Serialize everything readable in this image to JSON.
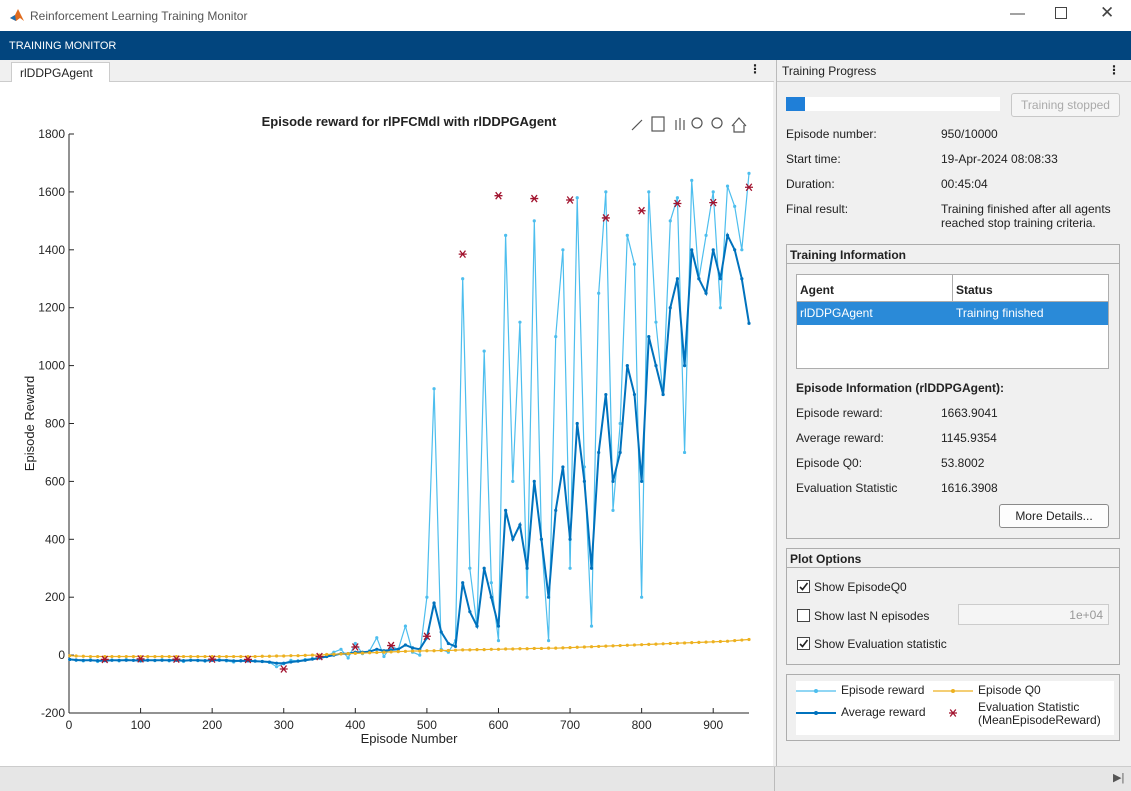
{
  "window": {
    "title": "Reinforcement Learning Training Monitor"
  },
  "toolbar": {
    "title": "TRAINING MONITOR"
  },
  "document_tab": {
    "label": "rlDDPGAgent"
  },
  "chart_data": {
    "type": "line",
    "title": "Episode reward for rlPFCMdl with rlDDPGAgent",
    "xlabel": "Episode Number",
    "ylabel": "Episode Reward",
    "xlim": [
      0,
      950
    ],
    "xticks": [
      0,
      100,
      200,
      300,
      400,
      500,
      600,
      700,
      800,
      900
    ],
    "ylim": [
      -200,
      1800
    ],
    "yticks": [
      -200,
      0,
      200,
      400,
      600,
      800,
      1000,
      1200,
      1400,
      1600,
      1800
    ],
    "x": [
      1,
      10,
      20,
      30,
      40,
      50,
      60,
      70,
      80,
      90,
      100,
      110,
      120,
      130,
      140,
      150,
      160,
      170,
      180,
      190,
      200,
      210,
      220,
      230,
      240,
      250,
      260,
      270,
      280,
      290,
      300,
      310,
      320,
      330,
      340,
      350,
      360,
      370,
      380,
      390,
      400,
      410,
      420,
      430,
      440,
      450,
      460,
      470,
      480,
      490,
      500,
      510,
      520,
      530,
      540,
      550,
      560,
      570,
      580,
      590,
      600,
      610,
      620,
      630,
      640,
      650,
      660,
      670,
      680,
      690,
      700,
      710,
      720,
      730,
      740,
      750,
      760,
      770,
      780,
      790,
      800,
      810,
      820,
      830,
      840,
      850,
      860,
      870,
      880,
      890,
      900,
      910,
      920,
      930,
      940,
      950
    ],
    "series": [
      {
        "name": "Episode reward",
        "color": "#4dbeee",
        "style": "line",
        "values": [
          -15,
          -18,
          -20,
          -16,
          -22,
          -19,
          -17,
          -20,
          -15,
          -18,
          -21,
          -17,
          -19,
          -16,
          -20,
          -18,
          -22,
          -17,
          -19,
          -21,
          -18,
          -16,
          -20,
          -24,
          -19,
          -17,
          -20,
          -22,
          -25,
          -40,
          -30,
          -18,
          -20,
          -15,
          -12,
          -10,
          -5,
          10,
          20,
          -10,
          40,
          5,
          15,
          60,
          -5,
          30,
          20,
          100,
          10,
          0,
          200,
          920,
          20,
          10,
          50,
          1300,
          300,
          100,
          1050,
          250,
          50,
          1450,
          600,
          1150,
          200,
          1500,
          400,
          50,
          1100,
          1400,
          300,
          1580,
          650,
          100,
          1250,
          1600,
          500,
          800,
          1450,
          1350,
          200,
          1600,
          1150,
          900,
          1500,
          1580,
          700,
          1640,
          1300,
          1450,
          1600,
          1200,
          1620,
          1550,
          1400,
          1664
        ]
      },
      {
        "name": "Average reward",
        "color": "#0072bd",
        "style": "line",
        "values": [
          -15,
          -17,
          -18,
          -18,
          -19,
          -19,
          -18,
          -18,
          -18,
          -18,
          -19,
          -18,
          -18,
          -18,
          -18,
          -18,
          -19,
          -18,
          -18,
          -19,
          -18,
          -18,
          -18,
          -20,
          -20,
          -20,
          -21,
          -22,
          -24,
          -28,
          -28,
          -24,
          -21,
          -18,
          -14,
          -10,
          -5,
          0,
          5,
          5,
          10,
          10,
          12,
          20,
          15,
          18,
          20,
          35,
          25,
          20,
          60,
          180,
          80,
          40,
          30,
          250,
          150,
          100,
          300,
          200,
          100,
          500,
          400,
          450,
          300,
          600,
          400,
          200,
          500,
          650,
          400,
          800,
          600,
          300,
          700,
          900,
          600,
          700,
          1000,
          900,
          600,
          1100,
          1000,
          900,
          1200,
          1300,
          1000,
          1400,
          1300,
          1250,
          1400,
          1300,
          1450,
          1400,
          1300,
          1146
        ]
      },
      {
        "name": "Episode Q0",
        "color": "#edb120",
        "style": "line",
        "values": [
          -2,
          -3,
          -4,
          -5,
          -5,
          -5,
          -5,
          -5,
          -5,
          -5,
          -5,
          -5,
          -5,
          -5,
          -5,
          -5,
          -5,
          -5,
          -5,
          -5,
          -5,
          -5,
          -5,
          -5,
          -5,
          -5,
          -5,
          -4,
          -4,
          -3,
          -3,
          -2,
          -2,
          -1,
          0,
          0,
          2,
          3,
          4,
          5,
          6,
          7,
          8,
          9,
          10,
          11,
          12,
          13,
          14,
          14,
          15,
          15,
          16,
          16,
          17,
          18,
          18,
          19,
          19,
          20,
          20,
          21,
          21,
          22,
          22,
          23,
          23,
          24,
          24,
          25,
          26,
          27,
          28,
          29,
          30,
          31,
          32,
          33,
          34,
          35,
          36,
          37,
          38,
          39,
          40,
          41,
          42,
          43,
          44,
          45,
          46,
          47,
          48,
          50,
          52,
          54
        ]
      },
      {
        "name": "Evaluation Statistic (MeanEpisodeReward)",
        "color": "#a2142f",
        "style": "marker",
        "x": [
          50,
          100,
          150,
          200,
          250,
          300,
          350,
          400,
          450,
          500,
          550,
          600,
          650,
          700,
          750,
          800,
          850,
          900,
          950
        ],
        "values": [
          -15,
          -13,
          -14,
          -14,
          -15,
          -48,
          -5,
          28,
          33,
          65,
          1385,
          1587,
          1577,
          1572,
          1510,
          1535,
          1560,
          1563,
          1616
        ]
      }
    ]
  },
  "progress": {
    "title": "Training Progress",
    "button": "Training stopped",
    "items": [
      {
        "label": "Episode number:",
        "value": "950/10000"
      },
      {
        "label": "Start time:",
        "value": "19-Apr-2024 08:08:33"
      },
      {
        "label": "Duration:",
        "value": "00:45:04"
      },
      {
        "label": "Final result:",
        "value": "Training finished after all agents reached stop training criteria."
      }
    ]
  },
  "training_info": {
    "title": "Training Information",
    "columns": [
      "Agent",
      "Status"
    ],
    "rows": [
      [
        "rlDDPGAgent",
        "Training finished"
      ]
    ],
    "episode_info": {
      "title": "Episode Information (rlDDPGAgent):",
      "items": [
        {
          "label": "Episode reward:",
          "value": "1663.9041"
        },
        {
          "label": "Average reward:",
          "value": "1145.9354"
        },
        {
          "label": "Episode Q0:",
          "value": "53.8002"
        },
        {
          "label": "Evaluation Statistic",
          "value": "1616.3908"
        }
      ]
    },
    "button": "More Details..."
  },
  "plot_options": {
    "title": "Plot Options",
    "options": [
      {
        "label": "Show EpisodeQ0",
        "checked": true
      },
      {
        "label": "Show last N episodes",
        "checked": false
      },
      {
        "label": "Show Evaluation statistic",
        "checked": true
      }
    ],
    "n_episodes": "1e+04"
  }
}
